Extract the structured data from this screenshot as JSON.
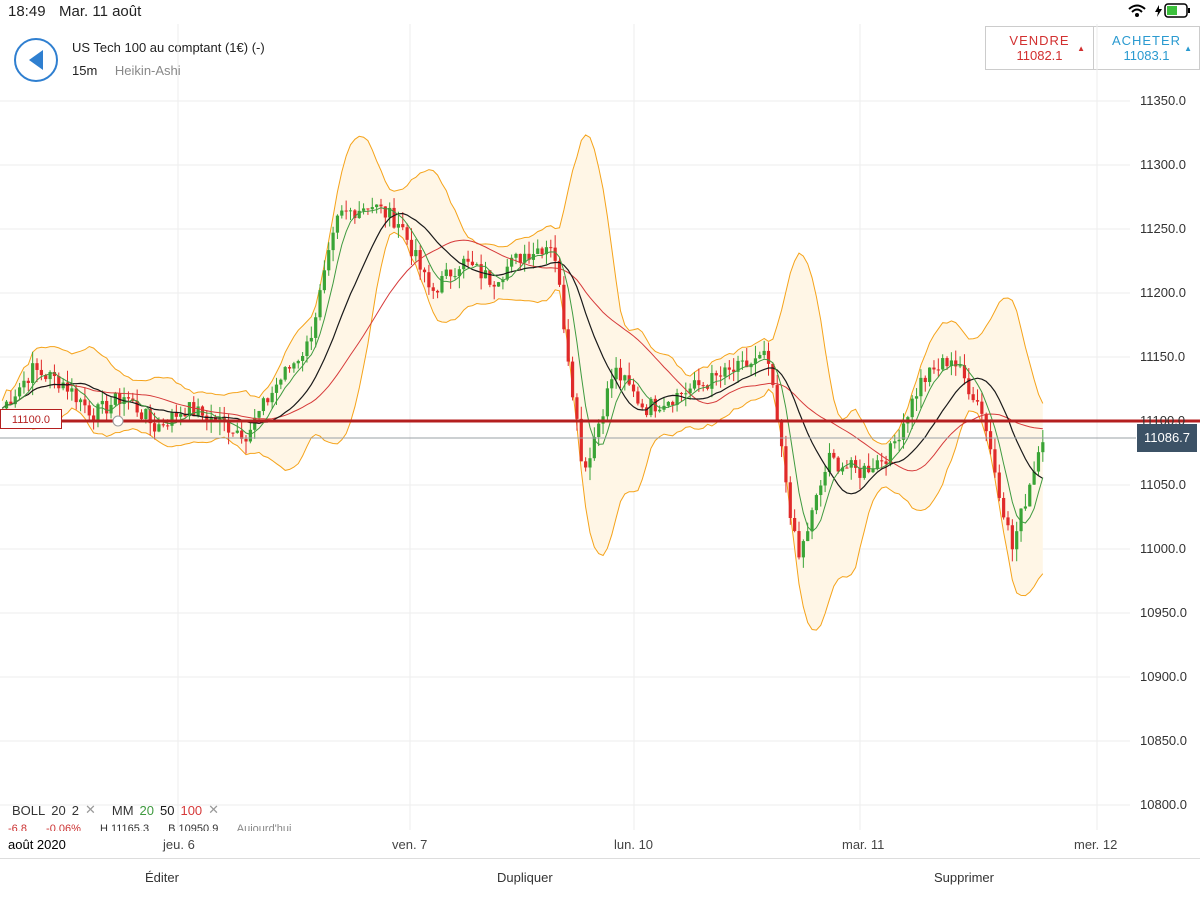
{
  "status_bar": {
    "time": "18:49",
    "date": "Mar. 11 août"
  },
  "instrument": {
    "name": "US Tech 100 au comptant (1€) (-)",
    "timeframe": "15m",
    "chart_type": "Heikin-Ashi"
  },
  "trade": {
    "sell_label": "VENDRE",
    "sell_price": "11082.1",
    "buy_label": "ACHETER",
    "buy_price": "11083.1"
  },
  "price_axis": [
    "11350.0",
    "11300.0",
    "11250.0",
    "11200.0",
    "11150.0",
    "11100.0",
    "11050.0",
    "11000.0",
    "10950.0",
    "10900.0",
    "10850.0",
    "10800.0"
  ],
  "current_price": "11086.7",
  "level_line": "11100.0",
  "time_axis": [
    "août 2020",
    "jeu. 6",
    "ven. 7",
    "lun. 10",
    "mar. 11",
    "mer. 12"
  ],
  "indicators": {
    "boll_label": "BOLL",
    "boll_p1": "20",
    "boll_p2": "2",
    "mm_label": "MM",
    "mm_1": "20",
    "mm_2": "50",
    "mm_3": "100",
    "remove_icon": "close-icon"
  },
  "ohlc_line": {
    "change": "-6.8",
    "change_pct": "-0.06%",
    "high": "H 11165.3",
    "low": "B 10950.9",
    "session": "Aujourd'hui"
  },
  "bottom_actions": {
    "edit": "Éditer",
    "duplicate": "Dupliquer",
    "delete": "Supprimer"
  },
  "colors": {
    "up": "#3aa436",
    "down": "#e02a2a",
    "boll": "#f5a31a",
    "mm20": "#3f9a3f",
    "mm50": "#1a1a1a",
    "mm100": "#d63a3a",
    "level": "#b41f1f",
    "accent": "#2f7fd0"
  },
  "chart_data": {
    "type": "candlestick",
    "ylim": [
      10775,
      11375
    ],
    "x": [
      "août 2020",
      "jeu. 6",
      "ven. 7",
      "lun. 10",
      "mar. 11",
      "mer. 12"
    ],
    "close_path": [
      11110,
      11140,
      11130,
      11105,
      11120,
      11095,
      11110,
      11100,
      11090,
      11130,
      11160,
      11260,
      11270,
      11255,
      11200,
      11225,
      11210,
      11230,
      11240,
      11060,
      11140,
      11110,
      11120,
      11130,
      11140,
      11150,
      10990,
      11070,
      11060,
      11075,
      11130,
      11150,
      11110,
      11000,
      11090
    ],
    "levels": {
      "last": 11086.7,
      "horizontal": 11100.0
    }
  }
}
